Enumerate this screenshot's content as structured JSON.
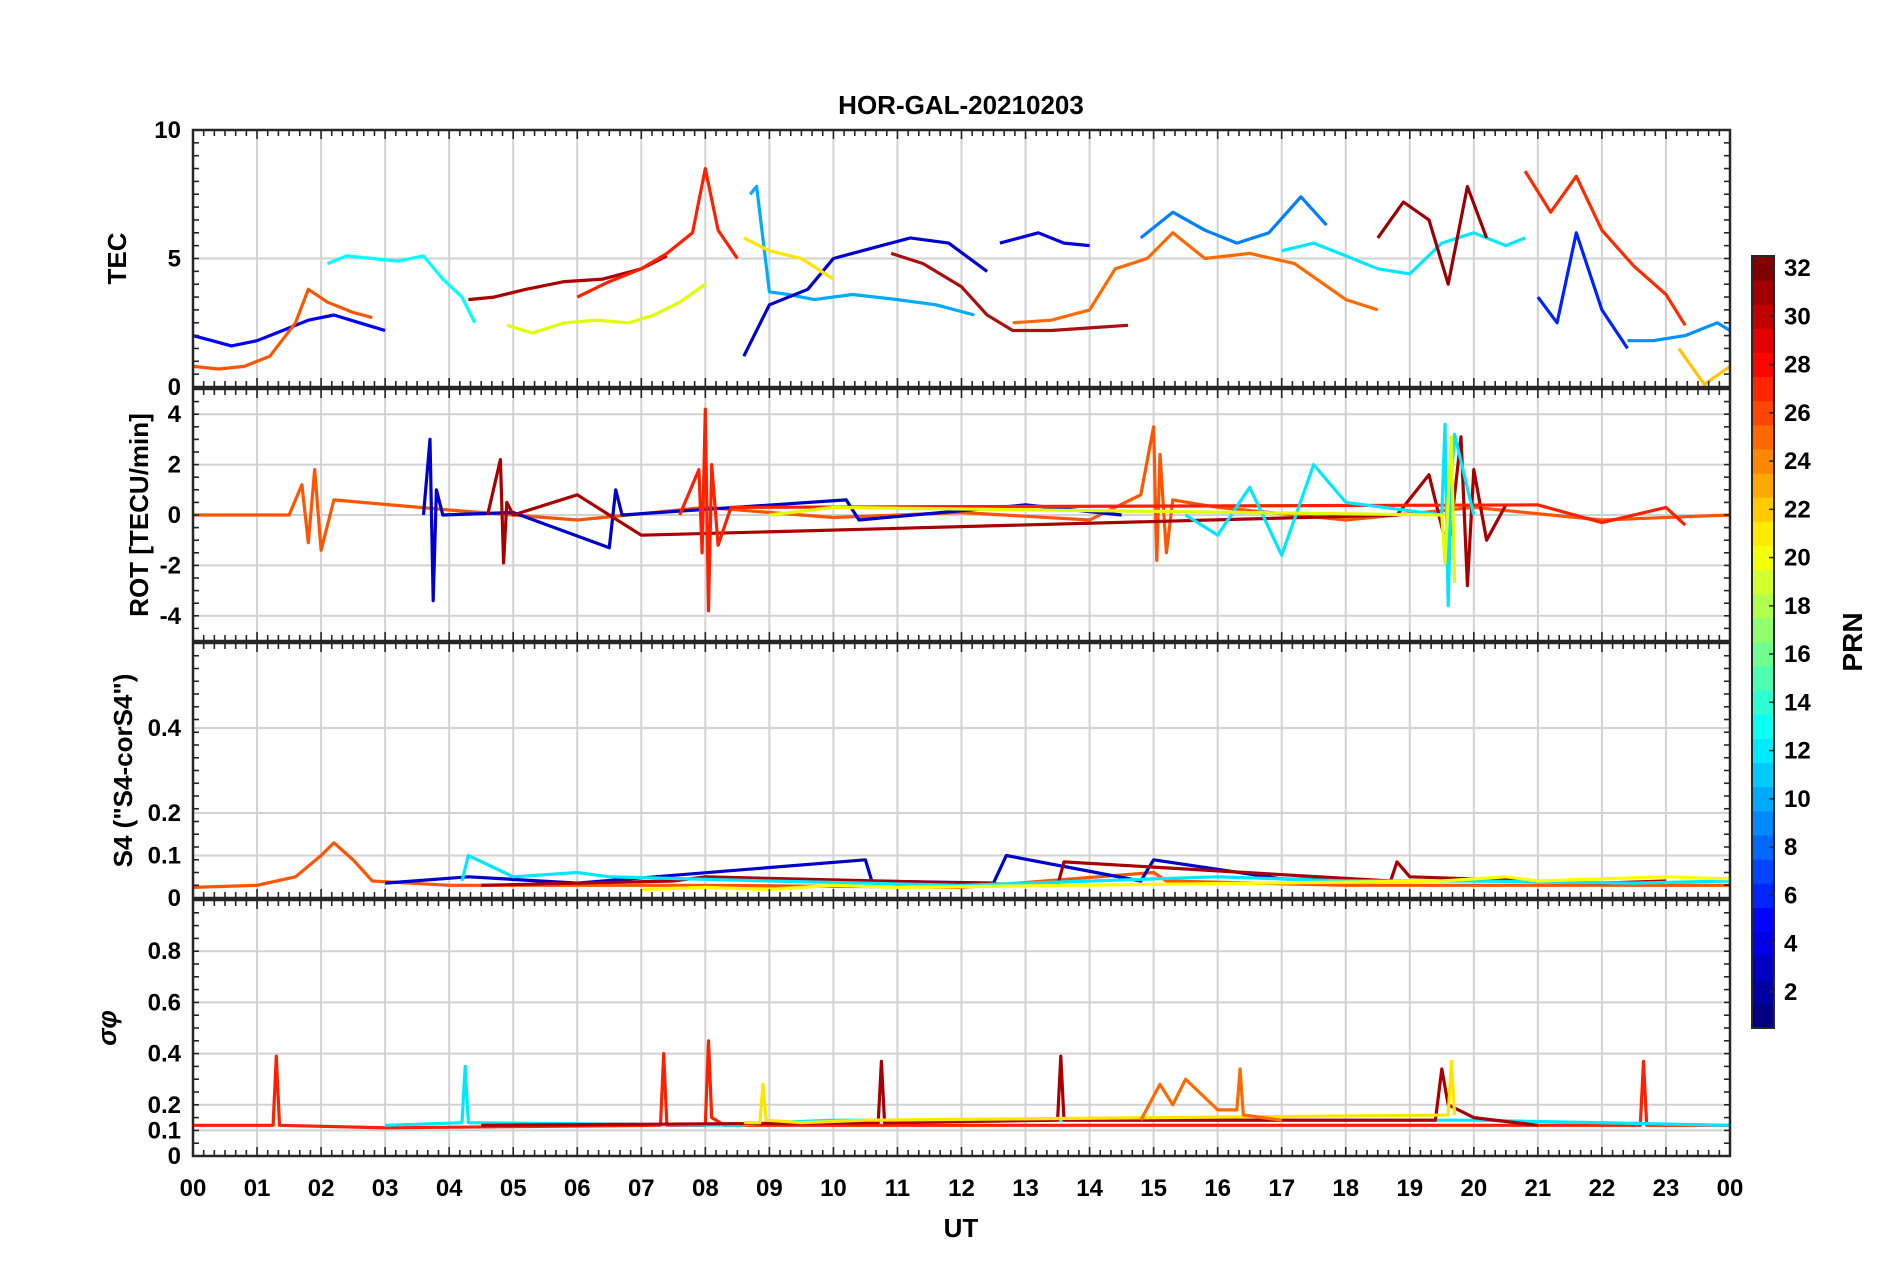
{
  "figure": {
    "title": "HOR-GAL-20210203",
    "xlabel": "UT",
    "x_ticks": [
      "00",
      "01",
      "02",
      "03",
      "04",
      "05",
      "06",
      "07",
      "08",
      "09",
      "10",
      "11",
      "12",
      "13",
      "14",
      "15",
      "16",
      "17",
      "18",
      "19",
      "20",
      "21",
      "22",
      "23",
      "00"
    ]
  },
  "colorbar": {
    "label": "PRN",
    "range": [
      1,
      32
    ],
    "ticks": [
      2,
      4,
      6,
      8,
      10,
      12,
      14,
      16,
      18,
      20,
      22,
      24,
      26,
      28,
      30,
      32
    ],
    "colormap": "jet",
    "stops": [
      "#00007f",
      "#0000ff",
      "#007fff",
      "#00ffff",
      "#7fff7f",
      "#ffff00",
      "#ff7f00",
      "#ff0000",
      "#7f0000"
    ]
  },
  "chart_data": [
    {
      "type": "line",
      "ylabel": "TEC",
      "ylim": [
        0,
        10
      ],
      "y_ticks": [
        0,
        5,
        10
      ],
      "x_unit": "hours UT",
      "grid": true,
      "series": [
        {
          "name": "PRN 5",
          "color": "#0000ff",
          "x": [
            0,
            0.3,
            0.6,
            1,
            1.4,
            1.8,
            2.2,
            2.6,
            3
          ],
          "y": [
            2,
            1.8,
            1.6,
            1.8,
            2.2,
            2.6,
            2.8,
            2.5,
            2.2
          ]
        },
        {
          "name": "PRN 25",
          "color": "#ff5500",
          "x": [
            0,
            0.4,
            0.8,
            1.2,
            1.6,
            1.8,
            2.1,
            2.5,
            2.8
          ],
          "y": [
            0.8,
            0.7,
            0.8,
            1.2,
            2.5,
            3.8,
            3.3,
            2.9,
            2.7
          ]
        },
        {
          "name": "PRN 12",
          "color": "#00ffff",
          "x": [
            2.1,
            2.4,
            2.8,
            3.2,
            3.6,
            3.9,
            4.2,
            4.4
          ],
          "y": [
            4.8,
            5.1,
            5,
            4.9,
            5.1,
            4.2,
            3.5,
            2.5
          ]
        },
        {
          "name": "PRN 30",
          "color": "#a80000",
          "x": [
            4.3,
            4.7,
            5.2,
            5.8,
            6.4,
            7,
            7.4
          ],
          "y": [
            3.4,
            3.5,
            3.8,
            4.1,
            4.2,
            4.6,
            5.1
          ]
        },
        {
          "name": "PRN 19",
          "color": "#e0ff00",
          "x": [
            4.9,
            5.3,
            5.8,
            6.3,
            6.8,
            7.2,
            7.6,
            8
          ],
          "y": [
            2.4,
            2.1,
            2.5,
            2.6,
            2.5,
            2.8,
            3.3,
            4
          ]
        },
        {
          "name": "PRN 27",
          "color": "#ff2000",
          "x": [
            6,
            6.5,
            7,
            7.4,
            7.8,
            8,
            8.2,
            8.5
          ],
          "y": [
            3.5,
            4.1,
            4.6,
            5.2,
            6,
            8.5,
            6.1,
            5
          ]
        },
        {
          "name": "PRN 11",
          "color": "#00aaff",
          "x": [
            8.7,
            8.8,
            9,
            9.3,
            9.7,
            10.3,
            11,
            11.6,
            12.2
          ],
          "y": [
            7.5,
            7.8,
            3.7,
            3.6,
            3.4,
            3.6,
            3.4,
            3.2,
            2.8
          ]
        },
        {
          "name": "PRN 4",
          "color": "#0000cc",
          "x": [
            8.6,
            9,
            9.6,
            10,
            10.6,
            11.2,
            11.8,
            12.4
          ],
          "y": [
            1.2,
            3.2,
            3.8,
            5,
            5.4,
            5.8,
            5.6,
            4.5
          ]
        },
        {
          "name": "PRN 21",
          "color": "#ffe600",
          "x": [
            8.6,
            9,
            9.5,
            10
          ],
          "y": [
            5.8,
            5.3,
            5,
            4.2
          ]
        },
        {
          "name": "PRN 29",
          "color": "#aa1010",
          "x": [
            10.9,
            11.4,
            12,
            12.4,
            12.8,
            13.4,
            14,
            14.6
          ],
          "y": [
            5.2,
            4.8,
            3.9,
            2.8,
            2.2,
            2.2,
            2.3,
            2.4
          ]
        },
        {
          "name": "PRN 3",
          "color": "#0000dd",
          "x": [
            12.6,
            13.2,
            13.6,
            14
          ],
          "y": [
            5.6,
            6,
            5.6,
            5.5
          ]
        },
        {
          "name": "PRN 24",
          "color": "#ff6a00",
          "x": [
            12.8,
            13.4,
            14,
            14.4,
            14.9,
            15.3,
            15.8,
            16.5,
            17.2,
            18,
            18.5
          ],
          "y": [
            2.5,
            2.6,
            3,
            4.6,
            5,
            6,
            5,
            5.2,
            4.8,
            3.4,
            3
          ]
        },
        {
          "name": "PRN 9",
          "color": "#0080ff",
          "x": [
            14.8,
            15.3,
            15.8,
            16.3,
            16.8,
            17.3,
            17.7
          ],
          "y": [
            5.8,
            6.8,
            6.1,
            5.6,
            6,
            7.4,
            6.3
          ]
        },
        {
          "name": "PRN 13",
          "color": "#00e8ff",
          "x": [
            17,
            17.5,
            18,
            18.5,
            19,
            19.5,
            20,
            20.5,
            20.8
          ],
          "y": [
            5.3,
            5.6,
            5.1,
            4.6,
            4.4,
            5.6,
            6,
            5.5,
            5.8
          ]
        },
        {
          "name": "PRN 31",
          "color": "#990000",
          "x": [
            18.5,
            18.9,
            19.3,
            19.6,
            19.9,
            20.2
          ],
          "y": [
            5.8,
            7.2,
            6.5,
            4,
            7.8,
            5.8
          ]
        },
        {
          "name": "PRN 28",
          "color": "#ff2a00",
          "x": [
            20.8,
            21.2,
            21.6,
            22,
            22.5,
            23,
            23.3
          ],
          "y": [
            8.4,
            6.8,
            8.2,
            6.1,
            4.7,
            3.6,
            2.4
          ]
        },
        {
          "name": "PRN 6",
          "color": "#0022ff",
          "x": [
            21,
            21.3,
            21.6,
            22,
            22.4
          ],
          "y": [
            3.5,
            2.5,
            6,
            3,
            1.5
          ]
        },
        {
          "name": "PRN 10",
          "color": "#0090ff",
          "x": [
            22.4,
            22.8,
            23.3,
            23.8,
            24
          ],
          "y": [
            1.8,
            1.8,
            2,
            2.5,
            2.2
          ]
        },
        {
          "name": "PRN 22",
          "color": "#ffc400",
          "x": [
            23.2,
            23.6,
            24
          ],
          "y": [
            1.5,
            0.1,
            0.8
          ]
        }
      ]
    },
    {
      "type": "line",
      "ylabel": "ROT [TECU/min]",
      "ylim": [
        -5,
        5
      ],
      "y_ticks": [
        -4,
        -2,
        0,
        2,
        4
      ],
      "x_unit": "hours UT",
      "grid": true,
      "series": [
        {
          "name": "PRN 25",
          "color": "#ff5500",
          "x": [
            0,
            1.5,
            1.7,
            1.8,
            1.9,
            2,
            2.2,
            4,
            6,
            8,
            10,
            12,
            14,
            14.8,
            15,
            15.05,
            15.1,
            15.2,
            15.3,
            16,
            18,
            20,
            22,
            24
          ],
          "y": [
            0,
            0,
            1.2,
            -1.1,
            1.8,
            -1.4,
            0.6,
            0.2,
            -0.2,
            0.3,
            -0.1,
            0.1,
            -0.2,
            0.8,
            3.5,
            -1.8,
            2.4,
            -1.5,
            0.6,
            0.3,
            -0.2,
            0.3,
            -0.2,
            0
          ]
        },
        {
          "name": "PRN 4",
          "color": "#0000cc",
          "x": [
            3.6,
            3.7,
            3.75,
            3.8,
            3.9,
            5,
            6.5,
            6.6,
            6.7,
            10.2,
            10.4,
            13,
            14.5
          ],
          "y": [
            0,
            3,
            -3.4,
            1,
            0,
            0.1,
            -1.3,
            1,
            0,
            0.6,
            -0.2,
            0.4,
            0
          ]
        },
        {
          "name": "PRN 30",
          "color": "#a80000",
          "x": [
            4.6,
            4.8,
            4.85,
            4.9,
            5,
            6,
            7,
            18.8,
            19.3,
            19.6,
            19.8,
            19.9,
            20,
            20.2,
            20.5
          ],
          "y": [
            0,
            2.2,
            -1.9,
            0.5,
            0,
            0.8,
            -0.8,
            0,
            1.6,
            -1.5,
            3.1,
            -2.8,
            1.8,
            -1,
            0.4
          ]
        },
        {
          "name": "PRN 27",
          "color": "#ff2000",
          "x": [
            7.6,
            7.9,
            7.95,
            8,
            8.05,
            8.1,
            8.2,
            8.4,
            21,
            22,
            23,
            23.3
          ],
          "y": [
            0,
            1.8,
            -1.5,
            4.2,
            -3.8,
            2,
            -1.2,
            0.3,
            0.4,
            -0.3,
            0.3,
            -0.4
          ]
        },
        {
          "name": "PRN 13",
          "color": "#00e8ff",
          "x": [
            15.5,
            16,
            16.5,
            17,
            17.5,
            18,
            19.5,
            19.55,
            19.6,
            19.65,
            19.7,
            20
          ],
          "y": [
            0,
            -0.8,
            1.1,
            -1.6,
            2,
            0.5,
            0,
            3.6,
            -3.6,
            1.5,
            3.2,
            0
          ]
        },
        {
          "name": "PRN 19",
          "color": "#e0ff00",
          "x": [
            9,
            10,
            19.5,
            19.55,
            19.65,
            19.7
          ],
          "y": [
            0,
            0.3,
            0,
            -1.9,
            3.1,
            -2.7
          ]
        }
      ]
    },
    {
      "type": "line",
      "ylabel": "S4 (\"S4-corS4\")",
      "ylim": [
        0,
        0.6
      ],
      "y_ticks": [
        0,
        0.1,
        0.2,
        0.4
      ],
      "x_unit": "hours UT",
      "grid": true,
      "series": [
        {
          "name": "PRN 25",
          "color": "#ff5500",
          "x": [
            0,
            1,
            1.6,
            2,
            2.2,
            2.5,
            2.8,
            4,
            8,
            12,
            15,
            15.2,
            18,
            20,
            24
          ],
          "y": [
            0.025,
            0.03,
            0.05,
            0.1,
            0.13,
            0.09,
            0.04,
            0.03,
            0.03,
            0.025,
            0.06,
            0.04,
            0.03,
            0.03,
            0.03
          ]
        },
        {
          "name": "PRN 4",
          "color": "#0000cc",
          "x": [
            3,
            4.3,
            6,
            10.5,
            10.6,
            12.5,
            12.7,
            14.8,
            15,
            17,
            18.5
          ],
          "y": [
            0.035,
            0.05,
            0.035,
            0.09,
            0.04,
            0.035,
            0.1,
            0.04,
            0.09,
            0.045,
            0.04
          ]
        },
        {
          "name": "PRN 30",
          "color": "#a80000",
          "x": [
            4.5,
            7.5,
            8,
            13.5,
            13.6,
            18.7,
            18.8,
            19,
            21,
            22,
            23
          ],
          "y": [
            0.03,
            0.04,
            0.05,
            0.03,
            0.085,
            0.04,
            0.085,
            0.05,
            0.04,
            0.035,
            0.04
          ]
        },
        {
          "name": "PRN 13",
          "color": "#00e8ff",
          "x": [
            4.2,
            4.3,
            5,
            6,
            6.5,
            9,
            12,
            16,
            18,
            20,
            22.5,
            24
          ],
          "y": [
            0.04,
            0.1,
            0.05,
            0.06,
            0.05,
            0.04,
            0.03,
            0.05,
            0.04,
            0.04,
            0.035,
            0.04
          ]
        },
        {
          "name": "PRN 20",
          "color": "#ffff00",
          "x": [
            7,
            8,
            9,
            10,
            11,
            19.5,
            20.5,
            21,
            23,
            24
          ],
          "y": [
            0.02,
            0.025,
            0.02,
            0.03,
            0.025,
            0.04,
            0.05,
            0.04,
            0.05,
            0.045
          ]
        }
      ]
    },
    {
      "type": "line",
      "ylabel": "σφ",
      "ylim": [
        0,
        1
      ],
      "y_ticks": [
        0,
        0.1,
        0.2,
        0.4,
        0.6,
        0.8
      ],
      "x_unit": "hours UT",
      "grid": true,
      "series": [
        {
          "name": "PRN 27",
          "color": "#ff2000",
          "x": [
            0,
            1.25,
            1.3,
            1.35,
            3,
            7.3,
            7.35,
            7.4,
            8,
            8.05,
            8.1,
            8.3,
            22.6,
            22.65,
            22.7,
            24
          ],
          "y": [
            0.12,
            0.12,
            0.39,
            0.12,
            0.11,
            0.12,
            0.4,
            0.12,
            0.12,
            0.45,
            0.15,
            0.12,
            0.12,
            0.37,
            0.12,
            0.12
          ]
        },
        {
          "name": "PRN 13",
          "color": "#00e8ff",
          "x": [
            3,
            4.2,
            4.25,
            4.3,
            8.5,
            9,
            10,
            20,
            24
          ],
          "y": [
            0.12,
            0.13,
            0.35,
            0.13,
            0.12,
            0.13,
            0.14,
            0.14,
            0.12
          ]
        },
        {
          "name": "PRN 30",
          "color": "#a80000",
          "x": [
            4.5,
            10.7,
            10.75,
            10.8,
            13.5,
            13.55,
            13.6,
            19.4,
            19.5,
            19.6,
            20,
            21
          ],
          "y": [
            0.12,
            0.13,
            0.37,
            0.13,
            0.14,
            0.39,
            0.14,
            0.14,
            0.34,
            0.2,
            0.15,
            0.12
          ]
        },
        {
          "name": "PRN 21",
          "color": "#ffe600",
          "x": [
            8.6,
            8.85,
            8.9,
            8.95,
            9.5,
            10.5,
            19.6,
            19.65,
            19.7
          ],
          "y": [
            0.13,
            0.13,
            0.28,
            0.14,
            0.13,
            0.14,
            0.16,
            0.37,
            0.16
          ]
        },
        {
          "name": "PRN 24",
          "color": "#ff6a00",
          "x": [
            14.8,
            15.1,
            15.3,
            15.5,
            16,
            16.3,
            16.35,
            16.4,
            17
          ],
          "y": [
            0.14,
            0.28,
            0.2,
            0.3,
            0.18,
            0.18,
            0.34,
            0.16,
            0.14
          ]
        }
      ]
    }
  ]
}
